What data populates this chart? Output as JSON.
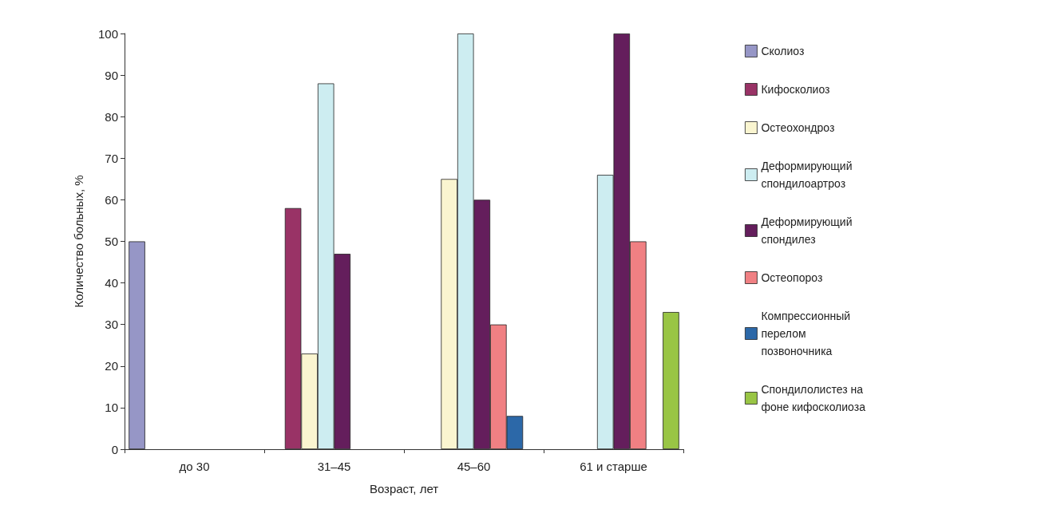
{
  "chart_data": {
    "type": "bar",
    "xlabel": "Возраст, лет",
    "ylabel": "Количество больных, %",
    "categories": [
      "до 30",
      "31–45",
      "45–60",
      "61 и старше"
    ],
    "ylim": [
      0,
      100
    ],
    "yticks": [
      0,
      10,
      20,
      30,
      40,
      50,
      60,
      70,
      80,
      90,
      100
    ],
    "grid": false,
    "legend": "right",
    "series": [
      {
        "name": "Сколиоз",
        "color": "#9696c6",
        "values": [
          50,
          0,
          0,
          0
        ]
      },
      {
        "name": "Кифосколиоз",
        "color": "#993366",
        "values": [
          0,
          58,
          0,
          0
        ]
      },
      {
        "name": "Остеохондроз",
        "color": "#faf5d0",
        "values": [
          0,
          23,
          65,
          0
        ]
      },
      {
        "name": "Деформирующий спондилоартроз",
        "color": "#cdedf1",
        "values": [
          0,
          88,
          100,
          66
        ]
      },
      {
        "name": "Деформирующий спондилез",
        "color": "#641e5c",
        "values": [
          0,
          47,
          60,
          100
        ]
      },
      {
        "name": "Остеопороз",
        "color": "#f08083",
        "values": [
          0,
          0,
          30,
          50
        ]
      },
      {
        "name": "Компрессионный перелом позвоночника",
        "color": "#2c68a8",
        "values": [
          0,
          0,
          8,
          0
        ]
      },
      {
        "name": "Спондилолистез на фоне кифосколиоза",
        "color": "#99c545",
        "values": [
          0,
          0,
          0,
          33
        ]
      }
    ]
  }
}
